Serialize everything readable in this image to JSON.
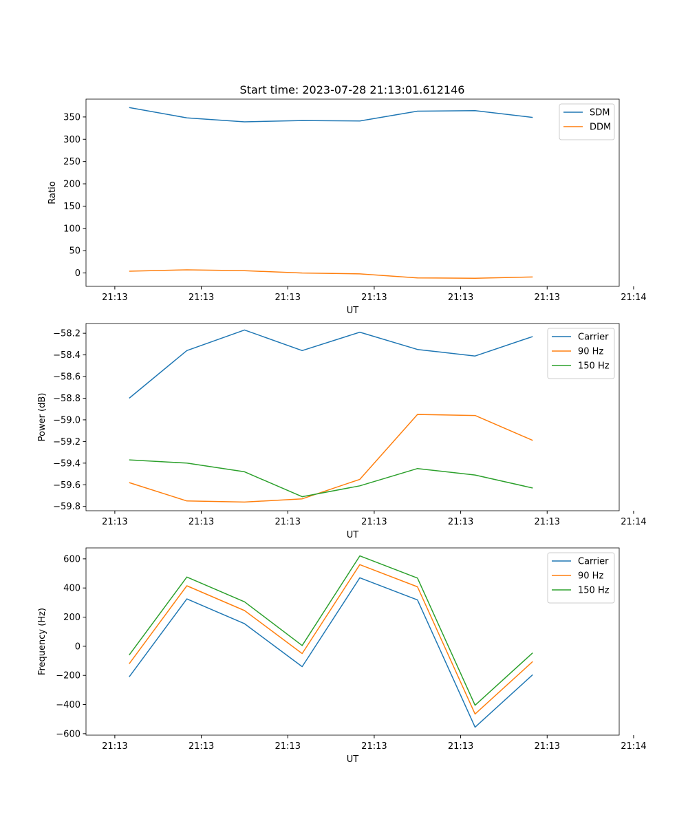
{
  "figure_title": "Start time: 2023-07-28 21:13:01.612146",
  "chart_data": [
    {
      "type": "line",
      "title": "Start time: 2023-07-28 21:13:01.612146",
      "xlabel": "UT",
      "ylabel": "Ratio",
      "x": [
        1,
        2,
        3,
        4,
        5,
        6,
        7,
        8
      ],
      "xlim": [
        0.25,
        9.5
      ],
      "xticks": [
        0.75,
        2.25,
        3.75,
        5.25,
        6.75,
        8.25,
        9.75
      ],
      "xtick_labels": [
        "21:13",
        "21:13",
        "21:13",
        "21:13",
        "21:13",
        "21:13",
        "21:14"
      ],
      "ylim": [
        -30,
        390
      ],
      "yticks": [
        0,
        50,
        100,
        150,
        200,
        250,
        300,
        350
      ],
      "ytick_labels": [
        "0",
        "50",
        "100",
        "150",
        "200",
        "250",
        "300",
        "350"
      ],
      "legend_position": "top-right",
      "series": [
        {
          "name": "SDM",
          "color": "#1f77b4",
          "values": [
            371,
            348,
            339,
            342,
            341,
            363,
            364,
            349
          ]
        },
        {
          "name": "DDM",
          "color": "#ff7f0e",
          "values": [
            4,
            7,
            5,
            0,
            -2,
            -11,
            -12,
            -9
          ]
        }
      ]
    },
    {
      "type": "line",
      "title": "",
      "xlabel": "UT",
      "ylabel": "Power (dB)",
      "x": [
        1,
        2,
        3,
        4,
        5,
        6,
        7,
        8
      ],
      "xlim": [
        0.25,
        9.5
      ],
      "xticks": [
        0.75,
        2.25,
        3.75,
        5.25,
        6.75,
        8.25,
        9.75
      ],
      "xtick_labels": [
        "21:13",
        "21:13",
        "21:13",
        "21:13",
        "21:13",
        "21:13",
        "21:14"
      ],
      "ylim": [
        -59.84,
        -58.11
      ],
      "yticks": [
        -59.8,
        -59.6,
        -59.4,
        -59.2,
        -59.0,
        -58.8,
        -58.6,
        -58.4,
        -58.2
      ],
      "ytick_labels": [
        "−59.8",
        "−59.6",
        "−59.4",
        "−59.2",
        "−59.0",
        "−58.8",
        "−58.6",
        "−58.4",
        "−58.2"
      ],
      "legend_position": "top-right",
      "series": [
        {
          "name": "Carrier",
          "color": "#1f77b4",
          "values": [
            -58.8,
            -58.36,
            -58.17,
            -58.36,
            -58.19,
            -58.35,
            -58.41,
            -58.23
          ]
        },
        {
          "name": "90 Hz",
          "color": "#ff7f0e",
          "values": [
            -59.58,
            -59.75,
            -59.76,
            -59.73,
            -59.55,
            -58.95,
            -58.96,
            -59.19
          ]
        },
        {
          "name": "150 Hz",
          "color": "#2ca02c",
          "values": [
            -59.37,
            -59.4,
            -59.48,
            -59.71,
            -59.61,
            -59.45,
            -59.51,
            -59.63
          ]
        }
      ]
    },
    {
      "type": "line",
      "title": "",
      "xlabel": "UT",
      "ylabel": "Frequency (Hz)",
      "x": [
        1,
        2,
        3,
        4,
        5,
        6,
        7,
        8
      ],
      "xlim": [
        0.25,
        9.5
      ],
      "xticks": [
        0.75,
        2.25,
        3.75,
        5.25,
        6.75,
        8.25,
        9.75
      ],
      "xtick_labels": [
        "21:13",
        "21:13",
        "21:13",
        "21:13",
        "21:13",
        "21:13",
        "21:14"
      ],
      "ylim": [
        -610,
        675
      ],
      "yticks": [
        -600,
        -400,
        -200,
        0,
        200,
        400,
        600
      ],
      "ytick_labels": [
        "−600",
        "−400",
        "−200",
        "0",
        "200",
        "400",
        "600"
      ],
      "legend_position": "top-right",
      "series": [
        {
          "name": "Carrier",
          "color": "#1f77b4",
          "values": [
            -210,
            325,
            155,
            -140,
            470,
            318,
            -555,
            -195
          ]
        },
        {
          "name": "90 Hz",
          "color": "#ff7f0e",
          "values": [
            -120,
            415,
            245,
            -50,
            560,
            408,
            -465,
            -105
          ]
        },
        {
          "name": "150 Hz",
          "color": "#2ca02c",
          "values": [
            -60,
            475,
            305,
            5,
            620,
            468,
            -405,
            -45
          ]
        }
      ]
    }
  ]
}
